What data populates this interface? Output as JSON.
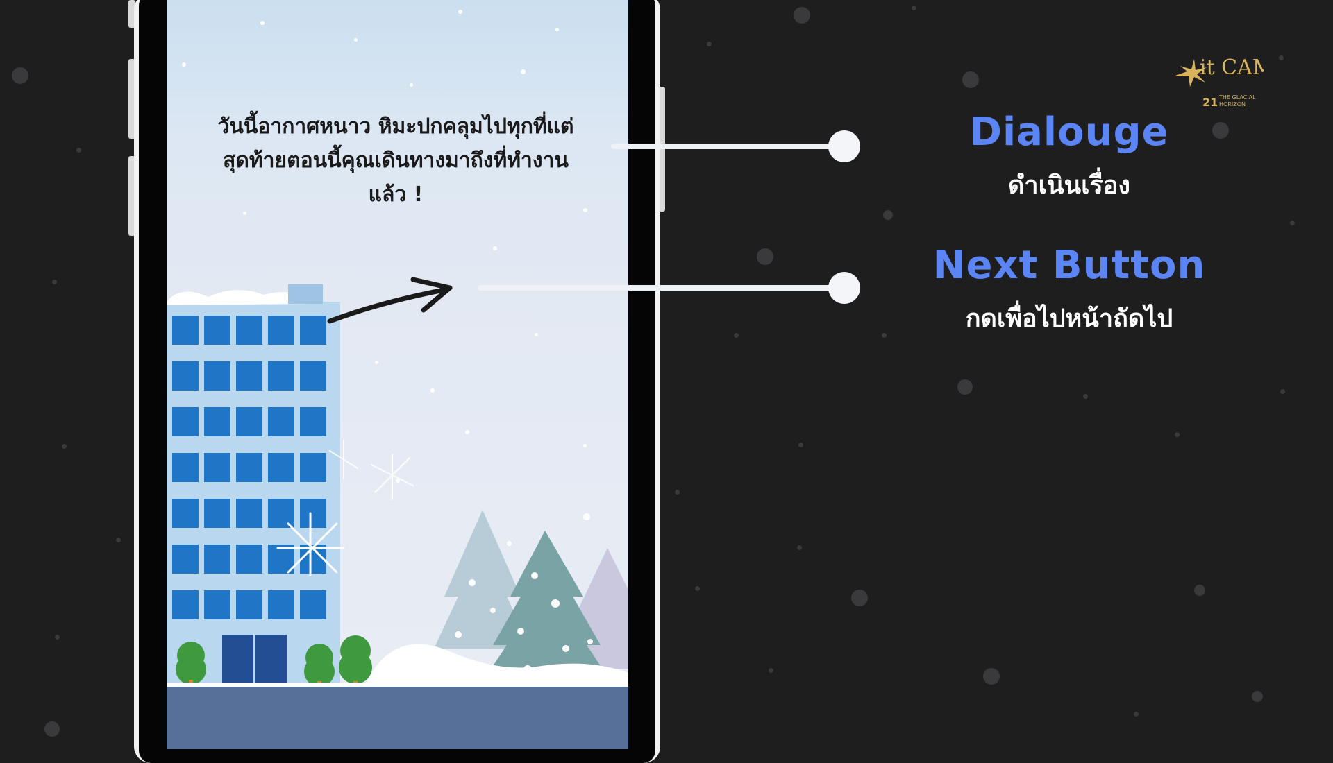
{
  "slide": {
    "background_color": "#1e1e1f",
    "accent_color": "#5b84f5"
  },
  "phone_screen": {
    "dialogue_lines": [
      "วันนี้อากาศหนาว หิมะปกคลุมไปทุกที่แต่",
      "สุดท้ายตอนนี้คุณเดินทางมาถึงที่ทำงาน",
      "แล้ว !"
    ],
    "next_button_icon": "hand-drawn-arrow-icon"
  },
  "annotations": [
    {
      "title": "Dialouge",
      "subtitle": "ดำเนินเรื่อง"
    },
    {
      "title": "Next Button",
      "subtitle": "กดเพื่อไปหน้าถัดไป"
    }
  ],
  "logo": {
    "icon": "itcamp-logo-icon",
    "wordmark": "it CAMP",
    "edition": "21",
    "tagline_line1": "THE GLACIAL",
    "tagline_line2": "HORIZON"
  }
}
